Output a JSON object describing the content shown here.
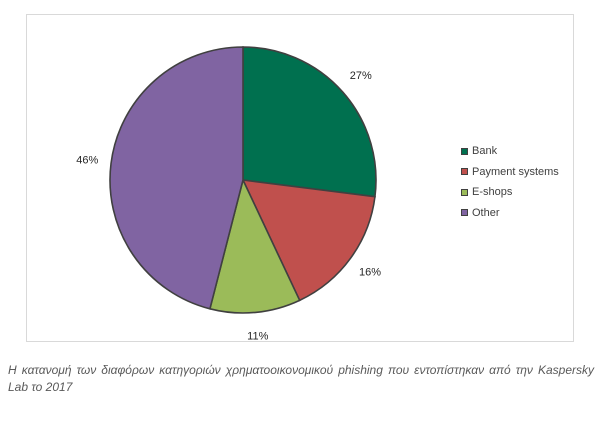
{
  "chart_data": {
    "type": "pie",
    "categories": [
      "Bank",
      "Payment systems",
      "E-shops",
      "Other"
    ],
    "values": [
      27,
      16,
      11,
      46
    ],
    "data_labels": [
      "27%",
      "16%",
      "11%",
      "46%"
    ],
    "colors": [
      "#00704f",
      "#c0504d",
      "#9bbb59",
      "#8064a2"
    ],
    "legend_position": "right",
    "start_angle": "12 o'clock, clockwise"
  },
  "caption": {
    "text": "Η κατανομή των διαφόρων κατηγοριών χρηματοοικονομικού phishing που εντοπίστηκαν από την Kaspersky Lab το 2017"
  }
}
